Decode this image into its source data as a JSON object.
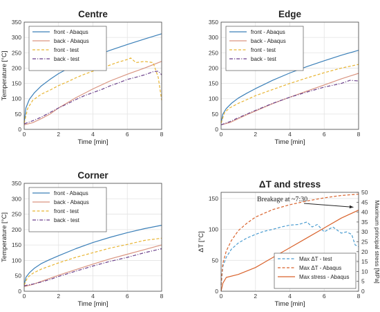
{
  "chart_data": [
    {
      "type": "line",
      "title": "Centre",
      "xlabel": "Time [min]",
      "ylabel": "Temperature [°C]",
      "xlim": [
        0,
        8
      ],
      "ylim": [
        0,
        350
      ],
      "xticks": [
        "0",
        "2",
        "4",
        "6",
        "8"
      ],
      "yticks": [
        "0",
        "50",
        "100",
        "150",
        "200",
        "250",
        "300",
        "350"
      ],
      "grid": true,
      "legend_position": "top-left",
      "series": [
        {
          "name": "front - Abaqus",
          "color": "#3a7fb8",
          "dash": "solid",
          "x": [
            0,
            0.1,
            0.3,
            0.6,
            1,
            1.5,
            2,
            3,
            4,
            5,
            6,
            7,
            8
          ],
          "y": [
            20,
            70,
            98,
            120,
            142,
            163,
            182,
            212,
            237,
            258,
            277,
            295,
            312
          ]
        },
        {
          "name": "back - Abaqus",
          "color": "#d99480",
          "dash": "solid",
          "x": [
            0,
            0.5,
            1,
            1.5,
            2,
            3,
            4,
            5,
            6,
            7,
            8
          ],
          "y": [
            15,
            22,
            35,
            50,
            70,
            103,
            132,
            158,
            180,
            200,
            222
          ]
        },
        {
          "name": "front - test",
          "color": "#e8b431",
          "dash": "dashed",
          "x": [
            0,
            0.2,
            0.5,
            1,
            1.5,
            2,
            2.5,
            3,
            3.5,
            4,
            4.5,
            5,
            5.5,
            6,
            6.2,
            6.5,
            7,
            7.5,
            7.8,
            8
          ],
          "y": [
            20,
            68,
            95,
            115,
            128,
            143,
            155,
            168,
            180,
            190,
            200,
            210,
            220,
            228,
            233,
            218,
            222,
            218,
            170,
            95
          ]
        },
        {
          "name": "back - test",
          "color": "#6a3f8a",
          "dash": "dashdot",
          "x": [
            0,
            0.5,
            1,
            1.5,
            2,
            2.5,
            3,
            3.5,
            4,
            4.5,
            5,
            5.5,
            6,
            6.5,
            7,
            7.5,
            7.8,
            8
          ],
          "y": [
            18,
            28,
            40,
            55,
            70,
            83,
            97,
            110,
            120,
            130,
            142,
            152,
            163,
            170,
            178,
            188,
            190,
            178
          ]
        }
      ]
    },
    {
      "type": "line",
      "title": "Edge",
      "xlabel": "Time [min]",
      "ylabel": "",
      "xlim": [
        0,
        8
      ],
      "ylim": [
        0,
        350
      ],
      "xticks": [
        "0",
        "2",
        "4",
        "6",
        "8"
      ],
      "yticks": [
        "0",
        "50",
        "100",
        "150",
        "200",
        "250",
        "300",
        "350"
      ],
      "grid": true,
      "legend_position": "top-left",
      "series": [
        {
          "name": "front - Abaqus",
          "color": "#3a7fb8",
          "dash": "solid",
          "x": [
            0,
            0.1,
            0.3,
            0.6,
            1,
            1.5,
            2,
            3,
            4,
            5,
            6,
            7,
            8
          ],
          "y": [
            20,
            50,
            68,
            85,
            102,
            118,
            133,
            160,
            184,
            205,
            224,
            242,
            258
          ]
        },
        {
          "name": "back - Abaqus",
          "color": "#d99480",
          "dash": "solid",
          "x": [
            0,
            0.5,
            1,
            1.5,
            2,
            3,
            4,
            5,
            6,
            7,
            8
          ],
          "y": [
            15,
            22,
            35,
            48,
            60,
            84,
            105,
            125,
            145,
            165,
            183
          ]
        },
        {
          "name": "front - test",
          "color": "#e8b431",
          "dash": "dashed",
          "x": [
            0,
            0.2,
            0.5,
            1,
            1.5,
            2,
            3,
            4,
            5,
            6,
            7,
            8
          ],
          "y": [
            20,
            55,
            70,
            85,
            97,
            110,
            130,
            150,
            168,
            185,
            200,
            212
          ]
        },
        {
          "name": "back - test",
          "color": "#6a3f8a",
          "dash": "dashdot",
          "x": [
            0,
            0.5,
            1,
            1.5,
            2,
            3,
            4,
            5,
            6,
            7,
            7.5,
            8
          ],
          "y": [
            15,
            25,
            38,
            50,
            62,
            85,
            105,
            122,
            138,
            150,
            160,
            158
          ]
        }
      ]
    },
    {
      "type": "line",
      "title": "Corner",
      "xlabel": "Time [min]",
      "ylabel": "Temperature [°C]",
      "xlim": [
        0,
        8
      ],
      "ylim": [
        0,
        350
      ],
      "xticks": [
        "0",
        "2",
        "4",
        "6",
        "8"
      ],
      "yticks": [
        "0",
        "50",
        "100",
        "150",
        "200",
        "250",
        "300",
        "350"
      ],
      "grid": true,
      "legend_position": "top-left",
      "series": [
        {
          "name": "front - Abaqus",
          "color": "#3a7fb8",
          "dash": "solid",
          "x": [
            0,
            0.1,
            0.3,
            0.6,
            1,
            1.5,
            2,
            3,
            4,
            5,
            6,
            7,
            8
          ],
          "y": [
            20,
            45,
            60,
            75,
            90,
            103,
            115,
            138,
            158,
            175,
            190,
            203,
            214
          ]
        },
        {
          "name": "back - Abaqus",
          "color": "#d99480",
          "dash": "solid",
          "x": [
            0,
            0.5,
            1,
            1.5,
            2,
            3,
            4,
            5,
            6,
            7,
            8
          ],
          "y": [
            15,
            22,
            32,
            42,
            52,
            70,
            88,
            105,
            120,
            135,
            150
          ]
        },
        {
          "name": "front - test",
          "color": "#e8b431",
          "dash": "dashed",
          "x": [
            0,
            0.2,
            0.5,
            1,
            1.5,
            2,
            3,
            4,
            5,
            6,
            7,
            8
          ],
          "y": [
            20,
            45,
            58,
            72,
            82,
            92,
            110,
            125,
            140,
            152,
            165,
            172
          ]
        },
        {
          "name": "back - test",
          "color": "#6a3f8a",
          "dash": "dashdot",
          "x": [
            0,
            0.5,
            1,
            1.5,
            2,
            3,
            4,
            5,
            6,
            7,
            8
          ],
          "y": [
            18,
            23,
            30,
            38,
            48,
            65,
            82,
            97,
            110,
            125,
            138
          ]
        }
      ]
    },
    {
      "type": "line",
      "title": "ΔT and stress",
      "xlabel": "Time [min]",
      "ylabel": "ΔT [°C]",
      "y2label": "Maximum principal stress [MPa]",
      "xlim": [
        0,
        8
      ],
      "ylim": [
        0,
        160
      ],
      "y2lim": [
        0,
        50
      ],
      "xticks": [
        "0",
        "2",
        "4",
        "6",
        "8"
      ],
      "yticks": [
        "0",
        "50",
        "100",
        "150"
      ],
      "y2ticks": [
        "0",
        "5",
        "10",
        "15",
        "20",
        "25",
        "30",
        "35",
        "40",
        "45",
        "50"
      ],
      "grid": true,
      "legend_position": "bottom-right",
      "annotation": "Breakage at ~7:30",
      "annotation_target": {
        "x": 7.7,
        "y": 136
      },
      "series": [
        {
          "name": "Max ΔT - test",
          "axis": "left",
          "color": "#4a9cd0",
          "dash": "dashed",
          "x": [
            0,
            0.1,
            0.3,
            0.6,
            1,
            1.5,
            2,
            2.5,
            3,
            3.5,
            4,
            4.5,
            5,
            5.3,
            5.6,
            6,
            6.5,
            7,
            7.3,
            7.6,
            7.8,
            8
          ],
          "y": [
            10,
            40,
            55,
            68,
            78,
            86,
            92,
            97,
            100,
            104,
            107,
            108,
            112,
            104,
            108,
            96,
            104,
            94,
            96,
            92,
            75,
            72
          ]
        },
        {
          "name": "Max ΔT - Abaqus",
          "axis": "left",
          "color": "#d9622b",
          "dash": "dashed",
          "x": [
            0,
            0.1,
            0.3,
            0.6,
            1,
            1.5,
            2,
            3,
            4,
            5,
            6,
            7,
            8
          ],
          "y": [
            10,
            45,
            65,
            82,
            98,
            110,
            120,
            132,
            140,
            146,
            151,
            155,
            157
          ]
        },
        {
          "name": "Max stress - Abaqus",
          "axis": "right",
          "color": "#d9622b",
          "dash": "solid",
          "x": [
            0,
            0.1,
            0.3,
            1,
            2,
            3,
            4,
            5,
            6,
            7,
            8
          ],
          "y": [
            0,
            4,
            7,
            8.5,
            12,
            17,
            22,
            27,
            32,
            37,
            41
          ]
        }
      ]
    }
  ]
}
